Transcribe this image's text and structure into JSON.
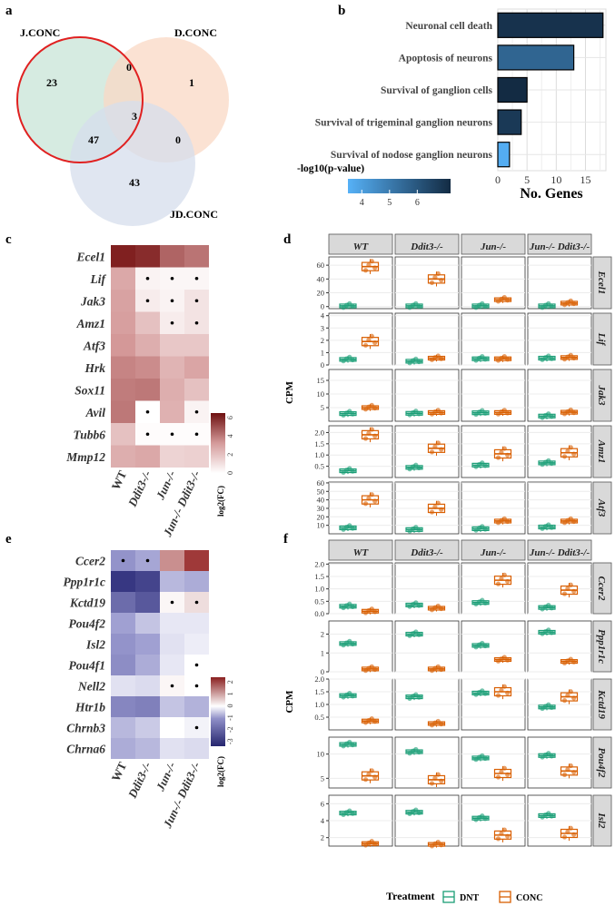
{
  "panel_letters": [
    "a",
    "b",
    "c",
    "d",
    "e",
    "f"
  ],
  "venn": {
    "sets": [
      {
        "name": "J.CONC",
        "color": "#cfe8dc"
      },
      {
        "name": "D.CONC",
        "color": "#f9d8c4"
      },
      {
        "name": "JD.CONC",
        "color": "#d5ddec"
      }
    ],
    "highlight_color": "#e02020",
    "counts": {
      "J_only": "23",
      "D_only": "1",
      "JD_only": "43",
      "J_D": "0",
      "J_JD": "47",
      "D_JD": "0",
      "all": "3"
    }
  },
  "chart_data": [
    {
      "type": "bar",
      "orientation": "horizontal",
      "panel": "b",
      "categories": [
        "Neuronal cell death",
        "Apoptosis of neurons",
        "Survival of ganglion cells",
        "Survival of trigeminal ganglion neurons",
        "Survival of nodose ganglion neurons"
      ],
      "values": [
        18,
        13,
        5,
        4,
        2
      ],
      "neg_log10_p": [
        7.0,
        5.6,
        7.2,
        6.8,
        3.6
      ],
      "xlabel": "No. Genes",
      "xlim": [
        0,
        18.5
      ],
      "xticks": [
        0,
        5,
        10,
        15
      ],
      "legend": {
        "title": "-log10(p-value)",
        "range": [
          3.5,
          7.2
        ],
        "ticks": [
          4,
          5,
          6
        ],
        "colors": [
          "#56b1f7",
          "#132b43"
        ]
      }
    },
    {
      "type": "heatmap",
      "panel": "c",
      "rows": [
        "Ecel1",
        "Lif",
        "Jak3",
        "Amz1",
        "Atf3",
        "Hrk",
        "Sox11",
        "Avil",
        "Tubb6",
        "Mmp12"
      ],
      "cols": [
        "WT",
        "Ddit3-/-",
        "Jun-/-",
        "Jun-/- Ddit3-/-"
      ],
      "values": [
        [
          6.3,
          6.0,
          4.6,
          4.2
        ],
        [
          2.8,
          0.4,
          0.3,
          0.3
        ],
        [
          3.0,
          0.6,
          0.4,
          0.9
        ],
        [
          3.1,
          2.0,
          0.6,
          0.9
        ],
        [
          3.3,
          2.6,
          1.8,
          1.8
        ],
        [
          3.8,
          3.6,
          2.4,
          2.9
        ],
        [
          4.0,
          4.1,
          2.6,
          2.0
        ],
        [
          4.1,
          0.0,
          2.5,
          0.4
        ],
        [
          2.0,
          0.1,
          0.1,
          0.1
        ],
        [
          2.6,
          2.8,
          1.4,
          1.5
        ]
      ],
      "dots": [
        [
          0,
          0,
          0,
          0
        ],
        [
          0,
          1,
          1,
          1
        ],
        [
          0,
          1,
          1,
          1
        ],
        [
          0,
          0,
          1,
          1
        ],
        [
          0,
          0,
          0,
          0
        ],
        [
          0,
          0,
          0,
          0
        ],
        [
          0,
          0,
          0,
          0
        ],
        [
          0,
          1,
          0,
          1
        ],
        [
          0,
          1,
          1,
          1
        ],
        [
          0,
          0,
          0,
          0
        ]
      ],
      "legend": {
        "title": "log2(FC)",
        "ticks": [
          0,
          2,
          4,
          6
        ],
        "range": [
          0,
          6.5
        ]
      }
    },
    {
      "type": "boxplot",
      "panel": "d",
      "groups": [
        "WT",
        "Ddit3-/-",
        "Jun-/-",
        "Jun-/- Ddit3-/-"
      ],
      "genes": [
        "Ecel1",
        "Lif",
        "Jak3",
        "Amz1",
        "Atf3"
      ],
      "ylabel": "CPM",
      "treatments": [
        "DNT",
        "CONC"
      ],
      "yranges": [
        [
          -3,
          72
        ],
        [
          0,
          4.2
        ],
        [
          0,
          19
        ],
        [
          0,
          2.3
        ],
        [
          0,
          61
        ]
      ],
      "yticks": [
        [
          0,
          20,
          40,
          60
        ],
        [
          0,
          1,
          2,
          3,
          4
        ],
        [
          5,
          10,
          15
        ],
        [
          0.5,
          1.0,
          1.5,
          2.0
        ],
        [
          10,
          20,
          30,
          40,
          50,
          60
        ]
      ],
      "medians": [
        [
          [
            1,
            58
          ],
          [
            1,
            40
          ],
          [
            1,
            10
          ],
          [
            1,
            5
          ]
        ],
        [
          [
            0.45,
            1.9
          ],
          [
            0.3,
            0.55
          ],
          [
            0.5,
            0.5
          ],
          [
            0.55,
            0.6
          ]
        ],
        [
          [
            2.8,
            5
          ],
          [
            2.9,
            3.2
          ],
          [
            3.1,
            3.2
          ],
          [
            1.9,
            3.3
          ]
        ],
        [
          [
            0.3,
            1.9
          ],
          [
            0.45,
            1.3
          ],
          [
            0.55,
            1.05
          ],
          [
            0.65,
            1.1
          ]
        ],
        [
          [
            7,
            40
          ],
          [
            5,
            30
          ],
          [
            6,
            15
          ],
          [
            8,
            15
          ]
        ]
      ]
    },
    {
      "type": "heatmap",
      "panel": "e",
      "rows": [
        "Ccer2",
        "Ppp1r1c",
        "Kctd19",
        "Pou4f2",
        "Isl2",
        "Pou4f1",
        "Nell2",
        "Htr1b",
        "Chrnb3",
        "Chrna6"
      ],
      "cols": [
        "WT",
        "Ddit3-/-",
        "Jun-/-",
        "Jun-/- Ddit3-/-"
      ],
      "values": [
        [
          -1.8,
          -1.5,
          1.3,
          2.3
        ],
        [
          -3.2,
          -3.0,
          -1.2,
          -1.4
        ],
        [
          -2.4,
          -2.7,
          0.1,
          0.4
        ],
        [
          -1.6,
          -1.0,
          -0.4,
          -0.4
        ],
        [
          -1.8,
          -1.6,
          -0.5,
          -0.3
        ],
        [
          -1.9,
          -1.4,
          -0.4,
          0.0
        ],
        [
          -0.5,
          -0.6,
          0.1,
          0.0
        ],
        [
          -2.0,
          -2.1,
          -1.0,
          -1.3
        ],
        [
          -1.2,
          -0.9,
          0.0,
          -0.2
        ],
        [
          -1.4,
          -1.2,
          -0.5,
          -0.6
        ]
      ],
      "dots": [
        [
          1,
          1,
          0,
          0
        ],
        [
          0,
          0,
          0,
          0
        ],
        [
          0,
          0,
          1,
          1
        ],
        [
          0,
          0,
          0,
          0
        ],
        [
          0,
          0,
          0,
          0
        ],
        [
          0,
          0,
          0,
          1
        ],
        [
          0,
          0,
          1,
          1
        ],
        [
          0,
          0,
          0,
          0
        ],
        [
          0,
          0,
          0,
          1
        ],
        [
          0,
          0,
          0,
          0
        ]
      ],
      "legend": {
        "title": "log2(FC)",
        "ticks": [
          -3,
          -2,
          -1,
          0,
          1,
          2
        ],
        "range": [
          -3.4,
          2.4
        ]
      }
    },
    {
      "type": "boxplot",
      "panel": "f",
      "groups": [
        "WT",
        "Ddit3-/-",
        "Jun-/-",
        "Jun-/- Ddit3-/-"
      ],
      "genes": [
        "Ccer2",
        "Ppp1r1c",
        "Kctd19",
        "Pou4f2",
        "Isl2"
      ],
      "ylabel": "CPM",
      "treatments": [
        "DNT",
        "CONC"
      ],
      "yranges": [
        [
          0,
          2.05
        ],
        [
          0,
          2.7
        ],
        [
          0,
          2.0
        ],
        [
          3,
          13.5
        ],
        [
          1,
          7
        ]
      ],
      "yticks": [
        [
          0,
          0.5,
          1.0,
          1.5,
          2.0
        ],
        [
          0,
          1,
          2
        ],
        [
          0.5,
          1.0,
          1.5,
          2.0
        ],
        [
          5,
          10
        ],
        [
          2,
          4,
          6
        ]
      ],
      "medians": [
        [
          [
            0.3,
            0.1
          ],
          [
            0.35,
            0.22
          ],
          [
            0.45,
            1.35
          ],
          [
            0.25,
            0.95
          ]
        ],
        [
          [
            1.5,
            0.15
          ],
          [
            2.0,
            0.15
          ],
          [
            1.4,
            0.65
          ],
          [
            2.1,
            0.55
          ]
        ],
        [
          [
            1.35,
            0.35
          ],
          [
            1.3,
            0.25
          ],
          [
            1.45,
            1.5
          ],
          [
            0.9,
            1.3
          ]
        ],
        [
          [
            12,
            5.5
          ],
          [
            10.5,
            4.7
          ],
          [
            9.2,
            6
          ],
          [
            9.7,
            6.5
          ]
        ],
        [
          [
            4.9,
            1.3
          ],
          [
            5.0,
            1.2
          ],
          [
            4.3,
            2.3
          ],
          [
            4.6,
            2.5
          ]
        ]
      ]
    }
  ],
  "legend_f": {
    "title": "Treatment",
    "items": [
      {
        "label": "DNT",
        "color": "#1b9e77"
      },
      {
        "label": "CONC",
        "color": "#d95f02"
      }
    ]
  }
}
